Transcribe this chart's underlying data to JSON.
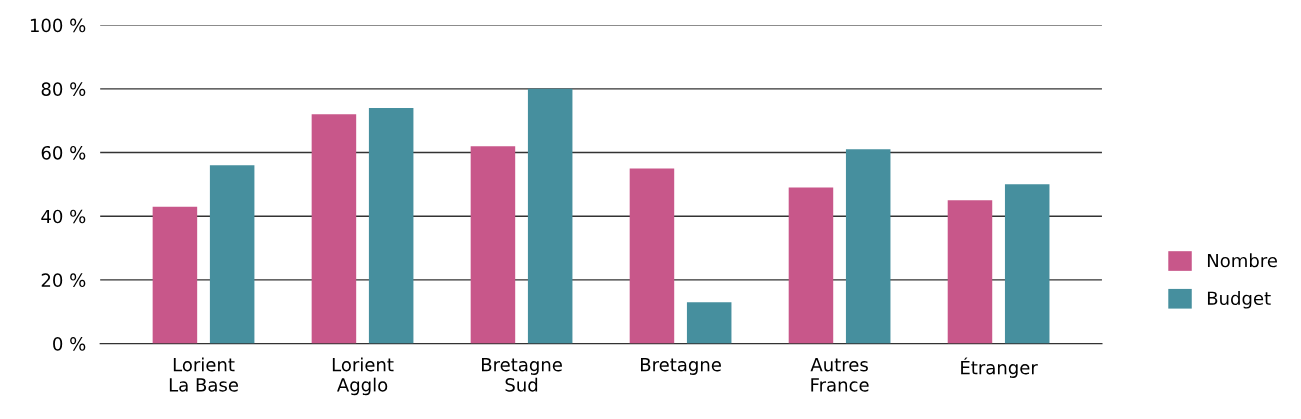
{
  "chart_data": {
    "type": "bar",
    "categories": [
      "Lorient\nLa Base",
      "Lorient\nAgglo",
      "Bretagne\nSud",
      "Bretagne",
      "Autres\nFrance",
      "Étranger"
    ],
    "series": [
      {
        "name": "Nombre",
        "color": "#c8578a",
        "values": [
          43,
          72,
          62,
          55,
          49,
          45
        ]
      },
      {
        "name": "Budget",
        "color": "#468f9e",
        "values": [
          56,
          74,
          80,
          13,
          61,
          50
        ]
      }
    ],
    "ylim": [
      0,
      100
    ],
    "yticks": [
      {
        "value": 0,
        "label": "0 %"
      },
      {
        "value": 20,
        "label": "20 %"
      },
      {
        "value": 40,
        "label": "40 %"
      },
      {
        "value": 60,
        "label": "60 %"
      },
      {
        "value": 80,
        "label": "80 %"
      },
      {
        "value": 100,
        "label": "100 %"
      }
    ],
    "grid": "y",
    "legend": "right"
  }
}
